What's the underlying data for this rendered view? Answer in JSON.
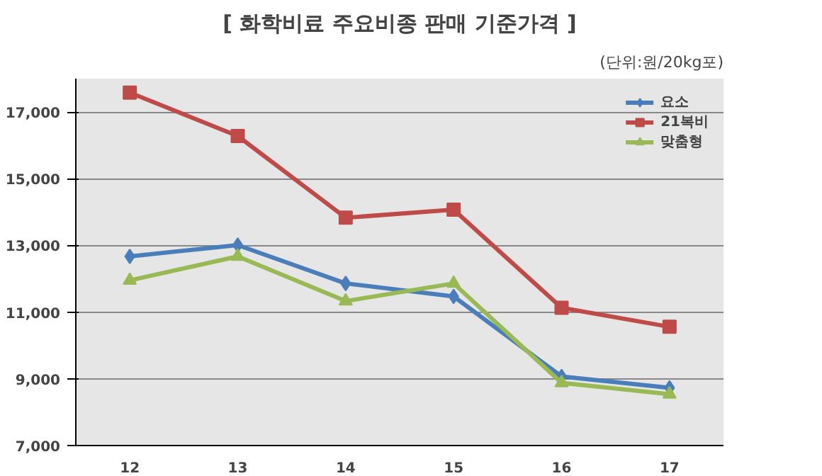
{
  "chart_data": {
    "type": "line",
    "title": "[ 화학비료 주요비종 판매 기준가격 ]",
    "subtitle": "(단위:원/20kg포)",
    "categories": [
      "12",
      "13",
      "14",
      "15",
      "16",
      "17"
    ],
    "ylim": [
      7000,
      18000
    ],
    "yticks": [
      {
        "value": 7000,
        "label": "7,000"
      },
      {
        "value": 9000,
        "label": "9,000"
      },
      {
        "value": 11000,
        "label": "11,000"
      },
      {
        "value": 13000,
        "label": "13,000"
      },
      {
        "value": 15000,
        "label": "15,000"
      },
      {
        "value": 17000,
        "label": "17,000"
      }
    ],
    "grid": "y",
    "legend": "top right",
    "series": [
      {
        "name": "요소",
        "color": "#4a7ebb",
        "marker": "diamond",
        "values": [
          12670,
          13010,
          11860,
          11470,
          9070,
          8730
        ]
      },
      {
        "name": "21복비",
        "color": "#be4b48",
        "marker": "square",
        "values": [
          17580,
          16280,
          13830,
          14070,
          11130,
          10560
        ]
      },
      {
        "name": "맞춤형",
        "color": "#98b954",
        "marker": "triangle",
        "values": [
          11950,
          12670,
          11330,
          11860,
          8880,
          8540
        ]
      }
    ]
  }
}
